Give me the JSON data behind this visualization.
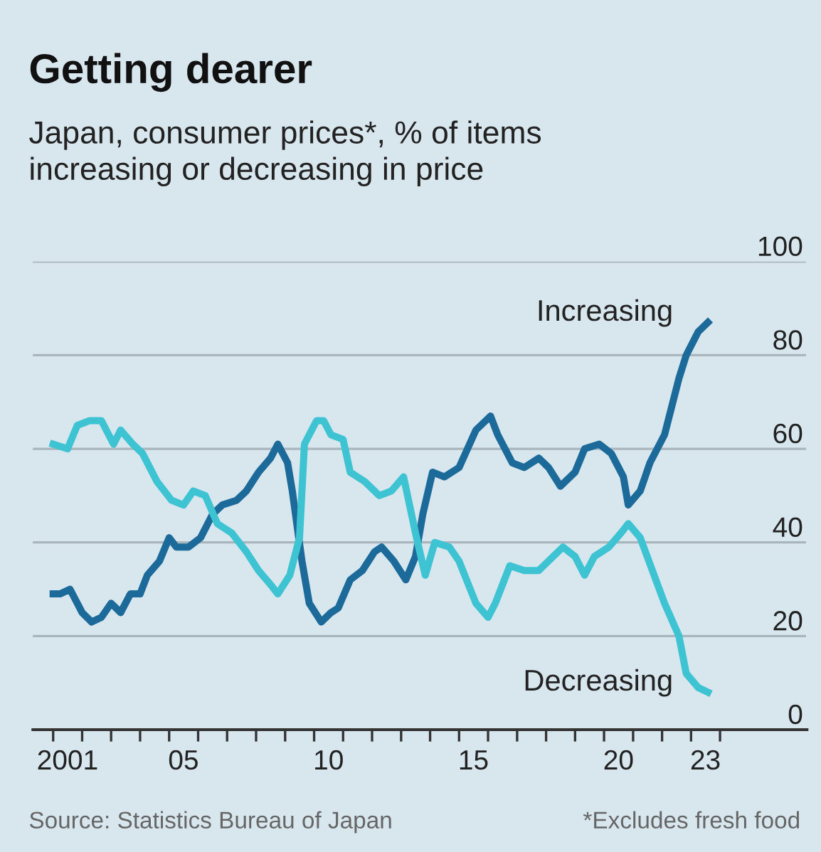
{
  "chart_data": {
    "type": "line",
    "title": "Getting dearer",
    "subtitle": "Japan, consumer prices*, % of items\nincreasing or decreasing in price",
    "annotations": [
      "Source: Statistics Bureau of Japan",
      "*Excludes fresh food"
    ],
    "xlim": [
      "2000-04-20",
      "2027-01-01"
    ],
    "ylim": [
      0,
      100
    ],
    "yticks": [
      0,
      20,
      40,
      60,
      80,
      100
    ],
    "xticks": [
      {
        "value": "2001-07-01",
        "label": "2001"
      },
      {
        "value": "2005-07-01",
        "label": "05"
      },
      {
        "value": "2010-07-01",
        "label": "10"
      },
      {
        "value": "2015-07-01",
        "label": "15"
      },
      {
        "value": "2020-07-01",
        "label": "20"
      },
      {
        "value": "2023-07-01",
        "label": "23"
      },
      {
        "value": "2001-01-01",
        "label": null
      },
      {
        "value": "2002-01-01",
        "label": null
      },
      {
        "value": "2003-01-01",
        "label": null
      },
      {
        "value": "2004-01-01",
        "label": null
      },
      {
        "value": "2005-01-01",
        "label": null
      },
      {
        "value": "2006-01-01",
        "label": null
      },
      {
        "value": "2007-01-01",
        "label": null
      },
      {
        "value": "2008-01-01",
        "label": null
      },
      {
        "value": "2009-01-01",
        "label": null
      },
      {
        "value": "2010-01-01",
        "label": null
      },
      {
        "value": "2011-01-01",
        "label": null
      },
      {
        "value": "2012-01-01",
        "label": null
      },
      {
        "value": "2013-01-01",
        "label": null
      },
      {
        "value": "2014-01-01",
        "label": null
      },
      {
        "value": "2015-01-01",
        "label": null
      },
      {
        "value": "2016-01-01",
        "label": null
      },
      {
        "value": "2017-01-01",
        "label": null
      },
      {
        "value": "2018-01-01",
        "label": null
      },
      {
        "value": "2019-01-01",
        "label": null
      },
      {
        "value": "2020-01-01",
        "label": null
      },
      {
        "value": "2021-01-01",
        "label": null
      },
      {
        "value": "2022-01-01",
        "label": null
      },
      {
        "value": "2023-01-01",
        "label": null
      },
      {
        "value": "2024-01-01",
        "label": null
      }
    ],
    "grid": "y",
    "legend": false,
    "line_style": "solid",
    "marker": "none",
    "series": [
      {
        "name": "Increasing",
        "color": "#1b6a9a",
        "x": [
          "2001-01",
          "2001-04",
          "2001-08",
          "2002-01",
          "2002-05",
          "2002-09",
          "2003-01",
          "2003-05",
          "2003-09",
          "2004-01",
          "2004-04",
          "2004-09",
          "2005-01",
          "2005-04",
          "2005-09",
          "2006-02",
          "2006-07",
          "2006-11",
          "2007-05",
          "2007-09",
          "2008-02",
          "2008-07",
          "2008-10",
          "2009-02",
          "2009-04",
          "2009-08",
          "2009-11",
          "2010-04",
          "2010-08",
          "2010-11",
          "2011-04",
          "2011-09",
          "2012-02",
          "2012-05",
          "2012-10",
          "2013-03",
          "2013-07",
          "2013-10",
          "2014-02",
          "2014-07",
          "2015-01",
          "2015-08",
          "2016-02",
          "2016-05",
          "2016-11",
          "2017-04",
          "2017-10",
          "2018-02",
          "2018-07",
          "2019-01",
          "2019-05",
          "2019-11",
          "2020-04",
          "2020-09",
          "2020-11",
          "2021-04",
          "2021-08",
          "2022-02",
          "2022-08",
          "2022-11",
          "2023-04",
          "2023-08"
        ],
        "values": [
          29,
          29,
          30,
          25,
          23,
          24,
          27,
          25,
          29,
          29,
          33,
          36,
          41,
          39,
          39,
          41,
          46,
          48,
          49,
          51,
          55,
          58,
          61,
          57,
          51,
          36,
          27,
          23,
          25,
          26,
          32,
          34,
          38,
          39,
          36,
          32,
          37,
          46,
          55,
          54,
          56,
          64,
          67,
          63,
          57,
          56,
          58,
          56,
          52,
          55,
          60,
          61,
          59,
          54,
          48,
          51,
          57,
          63,
          75,
          80,
          85,
          87
        ]
      },
      {
        "name": "Decreasing",
        "color": "#3ec3d3",
        "x": [
          "2001-01",
          "2001-07",
          "2001-11",
          "2002-04",
          "2002-09",
          "2003-02",
          "2003-05",
          "2003-10",
          "2004-02",
          "2004-08",
          "2005-02",
          "2005-07",
          "2005-11",
          "2006-04",
          "2006-09",
          "2007-03",
          "2007-09",
          "2008-02",
          "2008-07",
          "2008-10",
          "2009-03",
          "2009-07",
          "2009-09",
          "2010-02",
          "2010-05",
          "2010-08",
          "2011-01",
          "2011-04",
          "2011-10",
          "2012-04",
          "2012-09",
          "2013-02",
          "2013-07",
          "2013-11",
          "2014-03",
          "2014-09",
          "2015-01",
          "2015-08",
          "2016-01",
          "2016-04",
          "2016-10",
          "2017-04",
          "2017-10",
          "2018-04",
          "2018-08",
          "2019-01",
          "2019-05",
          "2019-09",
          "2020-03",
          "2020-08",
          "2020-11",
          "2021-04",
          "2021-09",
          "2022-02",
          "2022-08",
          "2022-11",
          "2023-04",
          "2023-08"
        ],
        "values": [
          61,
          60,
          65,
          66,
          66,
          61,
          64,
          61,
          59,
          53,
          49,
          48,
          51,
          50,
          44,
          42,
          38,
          34,
          31,
          29,
          33,
          41,
          61,
          66,
          66,
          63,
          62,
          55,
          53,
          50,
          51,
          54,
          42,
          33,
          40,
          39,
          36,
          27,
          24,
          27,
          35,
          34,
          34,
          37,
          39,
          37,
          33,
          37,
          39,
          42,
          44,
          41,
          34,
          27,
          20,
          12,
          9,
          8
        ]
      }
    ]
  }
}
